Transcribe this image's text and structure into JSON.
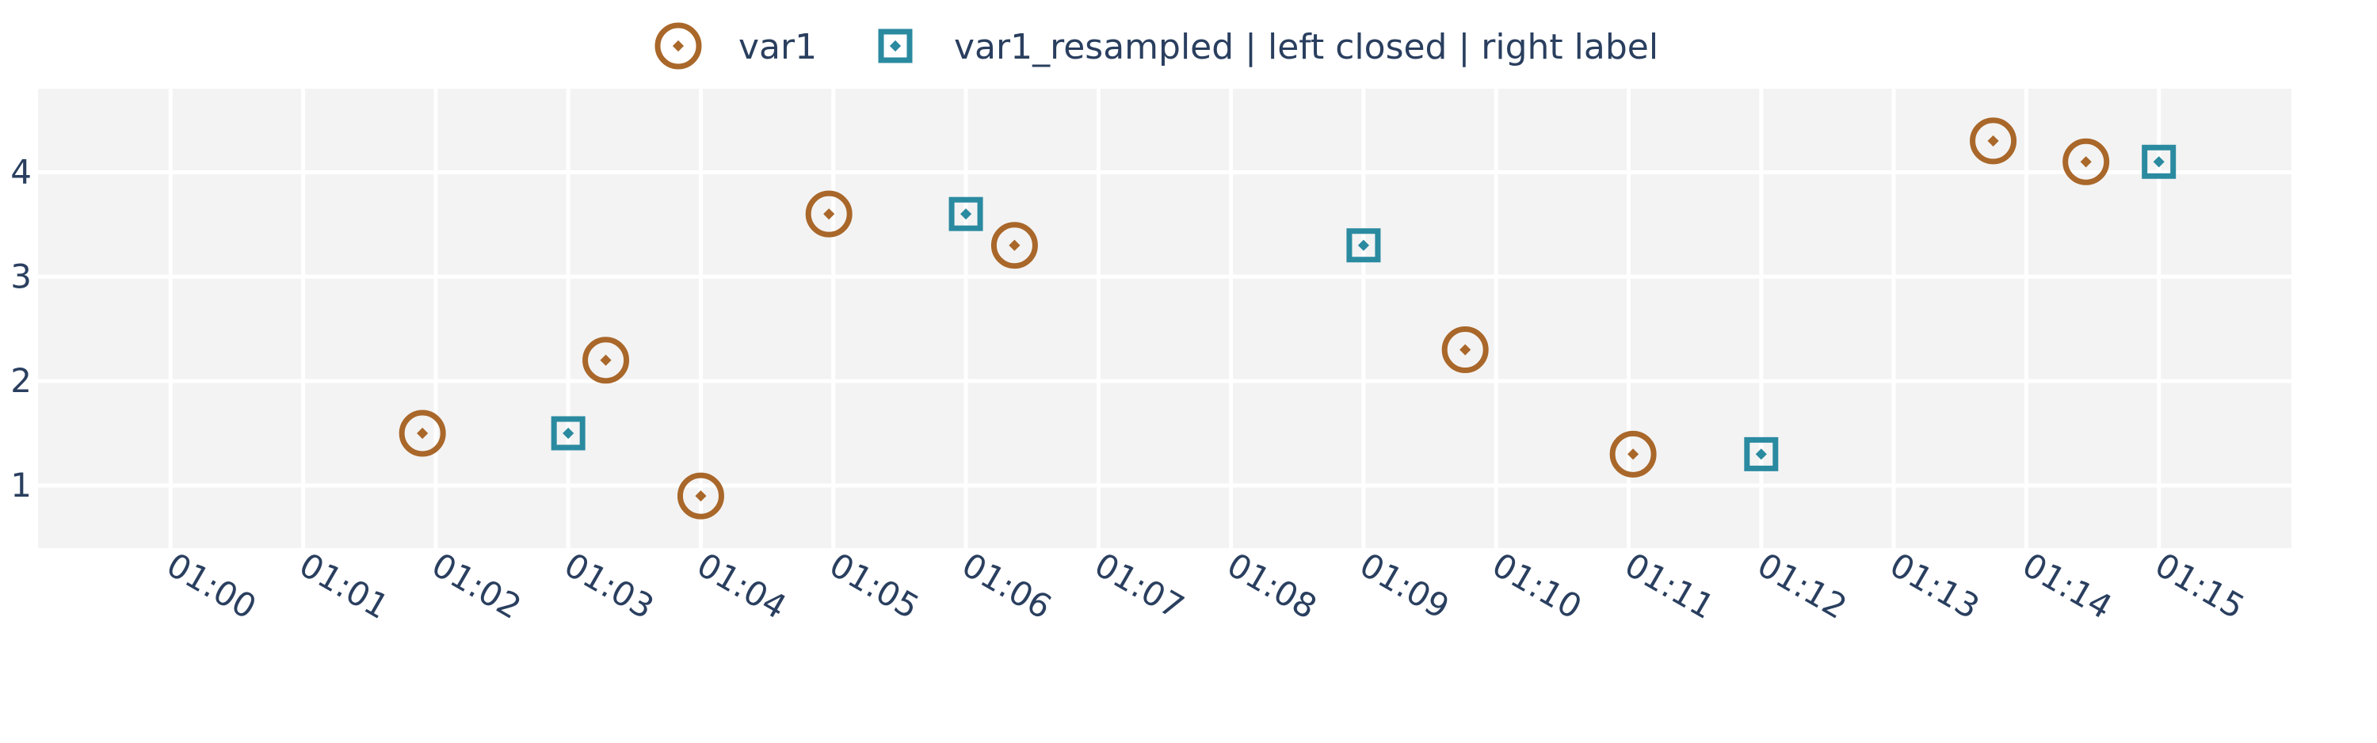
{
  "colors": {
    "background": "#ffffff",
    "plot_background": "#f3f3f3",
    "grid": "#ffffff",
    "text": "#2a3f5f",
    "var1": "#a9672a",
    "var1_resampled": "#2a8aa0"
  },
  "chart_data": {
    "type": "scatter",
    "title": "",
    "xlabel": "",
    "ylabel": "",
    "xlim": [
      "00:59:00",
      "01:16:00"
    ],
    "ylim": [
      0.4,
      4.8
    ],
    "grid": true,
    "legend_position": "top-center",
    "x_ticks": [
      "01:00",
      "01:01",
      "01:02",
      "01:03",
      "01:04",
      "01:05",
      "01:06",
      "01:07",
      "01:08",
      "01:09",
      "01:10",
      "01:11",
      "01:12",
      "01:13",
      "01:14",
      "01:15"
    ],
    "y_ticks": [
      "1",
      "2",
      "3",
      "4"
    ],
    "series": [
      {
        "name": "var1",
        "marker": "circle-open-dot",
        "color": "#a9672a",
        "points": [
          {
            "x": "01:01:54",
            "y": 1.5
          },
          {
            "x": "01:03:17",
            "y": 2.2
          },
          {
            "x": "01:04:00",
            "y": 0.9
          },
          {
            "x": "01:04:58",
            "y": 3.6
          },
          {
            "x": "01:06:22",
            "y": 3.3
          },
          {
            "x": "01:09:46",
            "y": 2.3
          },
          {
            "x": "01:11:02",
            "y": 1.3
          },
          {
            "x": "01:13:45",
            "y": 4.3
          },
          {
            "x": "01:14:27",
            "y": 4.1
          }
        ]
      },
      {
        "name": "var1_resampled | left closed | right label",
        "marker": "square-open-dot",
        "color": "#2a8aa0",
        "points": [
          {
            "x": "01:03:00",
            "y": 1.5
          },
          {
            "x": "01:06:00",
            "y": 3.6
          },
          {
            "x": "01:09:00",
            "y": 3.3
          },
          {
            "x": "01:12:00",
            "y": 1.3
          },
          {
            "x": "01:15:00",
            "y": 4.1
          }
        ]
      }
    ]
  }
}
